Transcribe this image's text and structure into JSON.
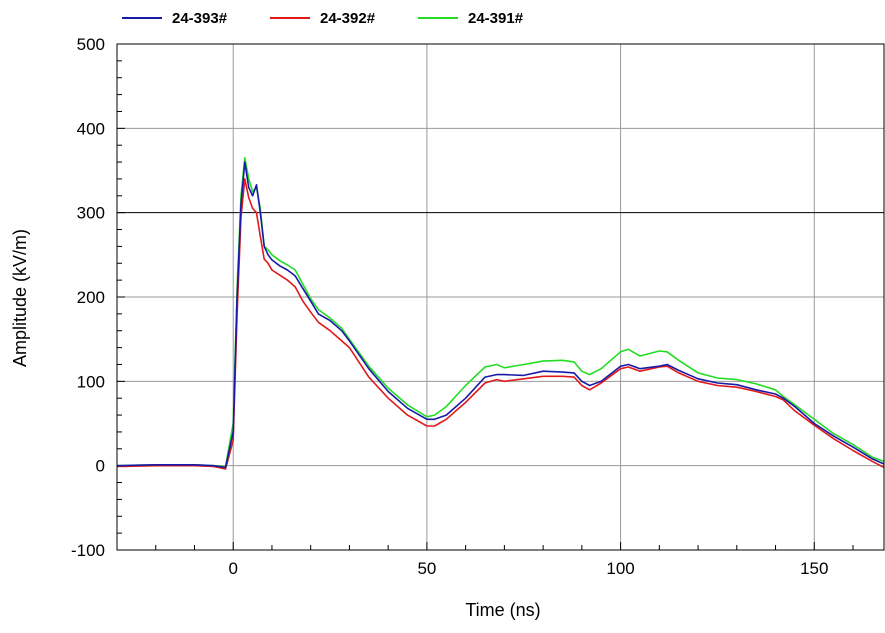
{
  "chart_data": {
    "type": "line",
    "title": "",
    "xlabel": "Time (ns)",
    "ylabel": "Amplitude (kV/m)",
    "xlim": [
      -30,
      168
    ],
    "ylim": [
      -100,
      500
    ],
    "xticks": [
      0,
      50,
      100,
      150
    ],
    "yticks": [
      -100,
      0,
      100,
      200,
      300,
      400,
      500
    ],
    "xtick_labels": [
      "0",
      "50",
      "100",
      "150"
    ],
    "ytick_labels": [
      "-100",
      "0",
      "100",
      "200",
      "300",
      "400",
      "500"
    ],
    "grid": true,
    "legend": "top",
    "series": [
      {
        "name": "24-393#",
        "color": "#1a1aaa",
        "x": [
          -30,
          -20,
          -10,
          -5,
          -2,
          0,
          1,
          2,
          3,
          4,
          5,
          6,
          7,
          8,
          9,
          10,
          12,
          14,
          16,
          18,
          20,
          22,
          25,
          28,
          30,
          35,
          40,
          45,
          50,
          52,
          55,
          60,
          65,
          68,
          70,
          75,
          80,
          85,
          88,
          90,
          92,
          95,
          100,
          102,
          105,
          110,
          112,
          115,
          120,
          125,
          130,
          135,
          140,
          142,
          145,
          150,
          155,
          160,
          165,
          168
        ],
        "y": [
          0,
          1,
          1,
          0,
          -2,
          40,
          200,
          310,
          360,
          330,
          320,
          333,
          300,
          260,
          250,
          244,
          237,
          232,
          225,
          210,
          195,
          180,
          172,
          160,
          148,
          115,
          88,
          68,
          55,
          55,
          60,
          80,
          105,
          108,
          108,
          107,
          112,
          111,
          110,
          100,
          95,
          100,
          118,
          120,
          115,
          118,
          120,
          113,
          103,
          98,
          96,
          90,
          85,
          80,
          70,
          50,
          35,
          22,
          8,
          2
        ]
      },
      {
        "name": "24-392#",
        "color": "#e01a1a",
        "x": [
          -30,
          -20,
          -10,
          -5,
          -2,
          0,
          1,
          2,
          3,
          4,
          5,
          6,
          7,
          8,
          9,
          10,
          12,
          14,
          16,
          18,
          20,
          22,
          25,
          28,
          30,
          35,
          40,
          45,
          50,
          52,
          55,
          60,
          65,
          68,
          70,
          75,
          80,
          85,
          88,
          90,
          92,
          95,
          100,
          102,
          105,
          110,
          112,
          115,
          120,
          125,
          130,
          135,
          140,
          142,
          145,
          150,
          155,
          160,
          165,
          168
        ],
        "y": [
          -1,
          0,
          0,
          -1,
          -4,
          30,
          180,
          295,
          340,
          318,
          305,
          300,
          272,
          245,
          240,
          232,
          226,
          220,
          212,
          195,
          182,
          170,
          160,
          148,
          140,
          105,
          80,
          60,
          47,
          47,
          55,
          75,
          98,
          102,
          100,
          103,
          106,
          106,
          105,
          95,
          90,
          98,
          115,
          117,
          112,
          117,
          118,
          110,
          100,
          95,
          93,
          88,
          82,
          78,
          65,
          48,
          32,
          18,
          5,
          -2
        ]
      },
      {
        "name": "24-391#",
        "color": "#22dd22",
        "x": [
          -30,
          -20,
          -10,
          -5,
          -2,
          0,
          1,
          2,
          3,
          4,
          5,
          6,
          7,
          8,
          9,
          10,
          12,
          14,
          16,
          18,
          20,
          22,
          25,
          28,
          30,
          35,
          40,
          45,
          50,
          52,
          55,
          60,
          65,
          68,
          70,
          75,
          80,
          85,
          88,
          90,
          92,
          95,
          100,
          102,
          105,
          110,
          112,
          115,
          120,
          125,
          130,
          135,
          140,
          142,
          145,
          150,
          155,
          160,
          165,
          168
        ],
        "y": [
          0,
          1,
          1,
          0,
          -1,
          50,
          210,
          320,
          365,
          340,
          325,
          330,
          305,
          260,
          256,
          250,
          243,
          238,
          232,
          215,
          198,
          185,
          175,
          163,
          150,
          118,
          92,
          72,
          58,
          60,
          70,
          95,
          117,
          120,
          116,
          120,
          124,
          125,
          123,
          112,
          108,
          115,
          135,
          138,
          130,
          136,
          135,
          125,
          110,
          104,
          102,
          97,
          90,
          82,
          72,
          55,
          38,
          25,
          10,
          5
        ]
      }
    ]
  }
}
